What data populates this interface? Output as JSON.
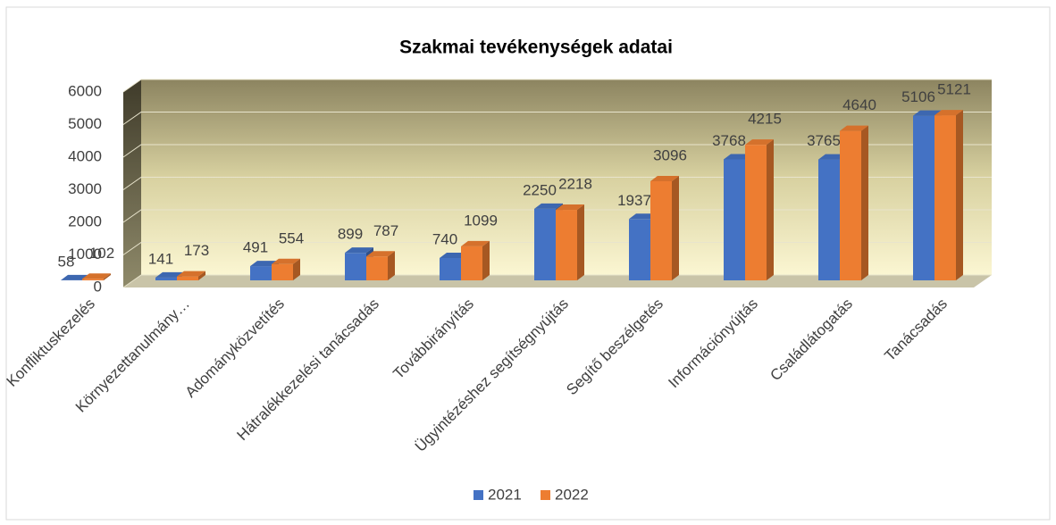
{
  "chart_data": {
    "type": "bar3d",
    "title": "Szakmai tevékenységek adatai",
    "categories": [
      "Konfliktuskezelés",
      "Környezettanulmány…",
      "Adományközvetítés",
      "Hátralékkezelési tanácsadás",
      "Továbbirányítás",
      "Ügyintézéshez segítségnyújtás",
      "Segítő beszélgetés",
      "Információnyújtás",
      "Családlátogatás",
      "Tanácsadás"
    ],
    "series": [
      {
        "name": "2021",
        "color": "#4472c4",
        "values": [
          58,
          141,
          491,
          899,
          740,
          2250,
          1937,
          3768,
          3765,
          5106
        ]
      },
      {
        "name": "2022",
        "color": "#ed7d31",
        "values": [
          102,
          173,
          554,
          787,
          1099,
          2218,
          3096,
          4215,
          4640,
          5121
        ]
      }
    ],
    "ylim": [
      0,
      6000
    ],
    "yticks": [
      0,
      1000,
      2000,
      3000,
      4000,
      5000,
      6000
    ],
    "grid": true,
    "legend": "bottom"
  }
}
